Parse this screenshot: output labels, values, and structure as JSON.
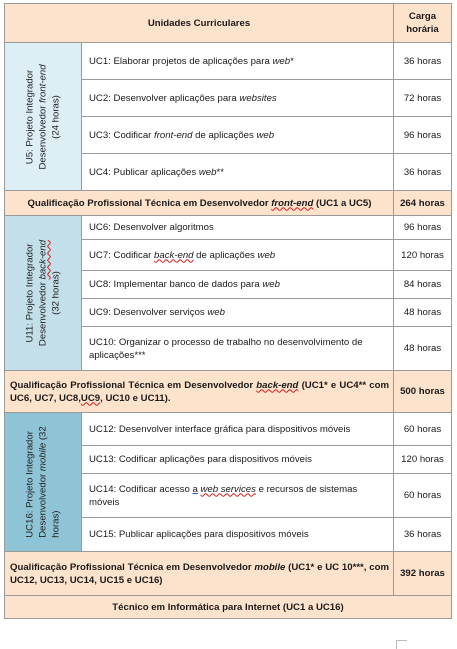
{
  "header": {
    "title": "Unidades Curriculares",
    "hours_line1": "Carga",
    "hours_line2": "horária"
  },
  "group1": {
    "project": {
      "line1": "U5: Projeto Integrador",
      "line2a": "Desenvolvedor ",
      "line2b": "front-end",
      "line3": "(24 horas)"
    },
    "rows": [
      {
        "a": "UC1: Elaborar projetos de aplicações para ",
        "b": "web",
        "c": "*",
        "hours": "36 horas"
      },
      {
        "a": "UC2: Desenvolver aplicações para ",
        "b": "websites",
        "c": "",
        "hours": "72 horas"
      },
      {
        "a": "UC3: Codificar ",
        "b": "front-end",
        "c": " de aplicações ",
        "d": "web",
        "hours": "96 horas"
      },
      {
        "a": "UC4: Publicar aplicações ",
        "b": "web",
        "c": "**",
        "hours": "36 horas"
      }
    ],
    "qual": {
      "a": "Qualificação Profissional Técnica em Desenvolvedor ",
      "b": "front-end",
      "c": " (UC1 a UC5)",
      "hours": "264 horas"
    }
  },
  "group2": {
    "project": {
      "line1": "U11: Projeto Integrador",
      "line2a": "Desenvolvedor ",
      "line2b": "back-end",
      "line3": "(32 horas)"
    },
    "rows": [
      {
        "a": "UC6: Desenvolver algoritmos",
        "hours": "96 horas"
      },
      {
        "a": "UC7: Codificar ",
        "b": "back-end",
        "c": " de aplicações ",
        "d": "web",
        "hours": "120 horas"
      },
      {
        "a": "UC8: Implementar banco de dados para ",
        "b": "web",
        "hours": "84 horas"
      },
      {
        "a": "UC9: Desenvolver serviços ",
        "b": "web",
        "hours": "48 horas"
      },
      {
        "a": "UC10: Organizar o processo de trabalho no desenvolvimento de aplicações***",
        "hours": "48 horas"
      }
    ],
    "qual": {
      "a": "Qualificação Profissional Técnica em Desenvolvedor ",
      "b": "back-end",
      "c": " (UC1* e UC4** com UC6, UC7, UC8,",
      "d": "UC9",
      "e": ", UC10 e UC11).",
      "hours": "500 horas"
    }
  },
  "group3": {
    "project": {
      "line1": "UC16: Projeto Integrador",
      "line2a": "Desenvolvedor ",
      "line2b": "mobile",
      "line2c": " (32",
      "line3": "horas)"
    },
    "rows": [
      {
        "a": "UC12: Desenvolver interface gráfica para dispositivos móveis",
        "hours": "60 horas"
      },
      {
        "a": "UC13: Codificar aplicações para dispositivos móveis",
        "hours": "120 horas"
      },
      {
        "a": "UC14: Codificar acesso ",
        "b": "a",
        "c": " ",
        "d": "web services",
        "e": " e recursos de sistemas móveis",
        "hours": "60 horas"
      },
      {
        "a": "UC15: Publicar aplicações para dispositivos móveis",
        "hours": "36 horas"
      }
    ],
    "qual": {
      "a": "Qualificação Profissional Técnica em Desenvolvedor ",
      "b": "mobile",
      "c": " (UC1* e UC 10***, com UC12, UC13, UC14, UC15 e UC16)",
      "hours": "392 horas"
    }
  },
  "footer": "Técnico em Informática para Internet (UC1 a UC16)"
}
